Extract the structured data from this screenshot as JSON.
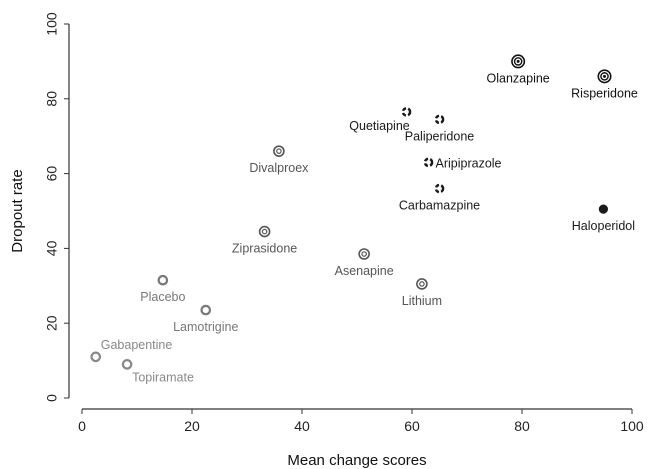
{
  "chart_data": {
    "type": "scatter",
    "title": "",
    "xlabel": "Mean change scores",
    "ylabel": "Dropout rate",
    "xlim": [
      0,
      100
    ],
    "ylim": [
      0,
      100
    ],
    "xticks": [
      "0",
      "20",
      "40",
      "60",
      "80",
      "100"
    ],
    "yticks": [
      "0",
      "20",
      "40",
      "60",
      "80",
      "100"
    ],
    "grid": false,
    "points": [
      {
        "name": "Olanzapine",
        "x": 79.3,
        "y": 90,
        "marker": "target-large",
        "color": "#111111",
        "label_pos": "below"
      },
      {
        "name": "Risperidone",
        "x": 95.0,
        "y": 86,
        "marker": "target-large",
        "color": "#111111",
        "label_pos": "below"
      },
      {
        "name": "Quetiapine",
        "x": 59.0,
        "y": 76.5,
        "marker": "dashed-ring",
        "color": "#1a1a1a",
        "label_pos": "below-left"
      },
      {
        "name": "Paliperidone",
        "x": 65.0,
        "y": 74.5,
        "marker": "dashed-ring",
        "color": "#1a1a1a",
        "label_pos": "below"
      },
      {
        "name": "Divalproex",
        "x": 35.8,
        "y": 66,
        "marker": "target-small",
        "color": "#555555",
        "label_pos": "below"
      },
      {
        "name": "Aripiprazole",
        "x": 63.0,
        "y": 63,
        "marker": "dashed-ring",
        "color": "#1a1a1a",
        "label_pos": "right"
      },
      {
        "name": "Carbamazpine",
        "x": 65.0,
        "y": 56,
        "marker": "dashed-ring",
        "color": "#1a1a1a",
        "label_pos": "below"
      },
      {
        "name": "Haloperidol",
        "x": 94.8,
        "y": 50.5,
        "marker": "filled",
        "color": "#1a1a1a",
        "label_pos": "below"
      },
      {
        "name": "Ziprasidone",
        "x": 33.2,
        "y": 44.5,
        "marker": "target-small",
        "color": "#555555",
        "label_pos": "below"
      },
      {
        "name": "Asenapine",
        "x": 51.3,
        "y": 38.5,
        "marker": "target-small",
        "color": "#555555",
        "label_pos": "below"
      },
      {
        "name": "Lithium",
        "x": 61.8,
        "y": 30.5,
        "marker": "target-small",
        "color": "#555555",
        "label_pos": "below"
      },
      {
        "name": "Placebo",
        "x": 14.7,
        "y": 31.5,
        "marker": "ring",
        "color": "#777777",
        "label_pos": "below"
      },
      {
        "name": "Lamotrigine",
        "x": 22.5,
        "y": 23.5,
        "marker": "ring",
        "color": "#777777",
        "label_pos": "below"
      },
      {
        "name": "Gabapentine",
        "x": 2.5,
        "y": 11,
        "marker": "ring",
        "color": "#888888",
        "label_pos": "above-right"
      },
      {
        "name": "Topiramate",
        "x": 8.2,
        "y": 9,
        "marker": "ring",
        "color": "#888888",
        "label_pos": "below-right"
      }
    ]
  }
}
